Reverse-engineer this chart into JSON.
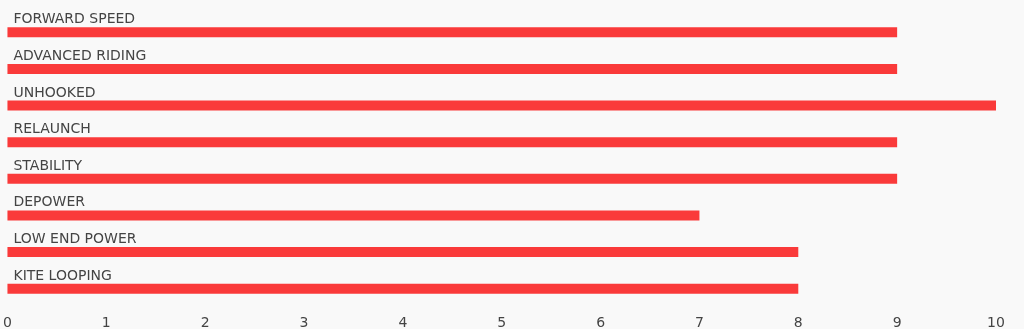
{
  "chart_data": {
    "type": "bar",
    "orientation": "horizontal",
    "categories": [
      "FORWARD SPEED",
      "ADVANCED RIDING",
      "UNHOOKED",
      "RELAUNCH",
      "STABILITY",
      "DEPOWER",
      "LOW END POWER",
      "KITE LOOPING"
    ],
    "values": [
      9,
      9,
      10,
      9,
      9,
      7,
      8,
      8
    ],
    "color": "#fa3a3a",
    "xlim": [
      0,
      10
    ],
    "xticks": [
      0,
      1,
      2,
      3,
      4,
      5,
      6,
      7,
      8,
      9,
      10
    ],
    "grid": false
  }
}
